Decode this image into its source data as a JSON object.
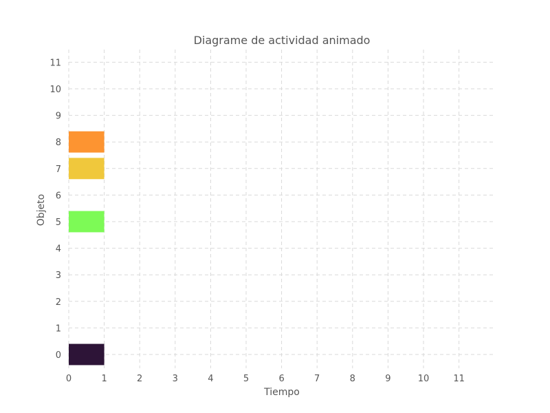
{
  "chart_data": {
    "type": "bar",
    "orientation": "horizontal",
    "title": "Diagrame de actividad animado",
    "xlabel": "Tiempo",
    "ylabel": "Objeto",
    "xlim": [
      0,
      12
    ],
    "ylim": [
      -0.4,
      11.4
    ],
    "xticks": [
      0,
      1,
      2,
      3,
      4,
      5,
      6,
      7,
      8,
      9,
      10,
      11
    ],
    "yticks": [
      0,
      1,
      2,
      3,
      4,
      5,
      6,
      7,
      8,
      9,
      10,
      11
    ],
    "grid": true,
    "bars": [
      {
        "y": 0,
        "start": 0,
        "end": 1,
        "color": "#2d1437"
      },
      {
        "y": 5,
        "start": 0,
        "end": 1,
        "color": "#7dfa56"
      },
      {
        "y": 7,
        "start": 0,
        "end": 1,
        "color": "#f0c83c"
      },
      {
        "y": 8,
        "start": 0,
        "end": 1,
        "color": "#fd9431"
      }
    ]
  }
}
